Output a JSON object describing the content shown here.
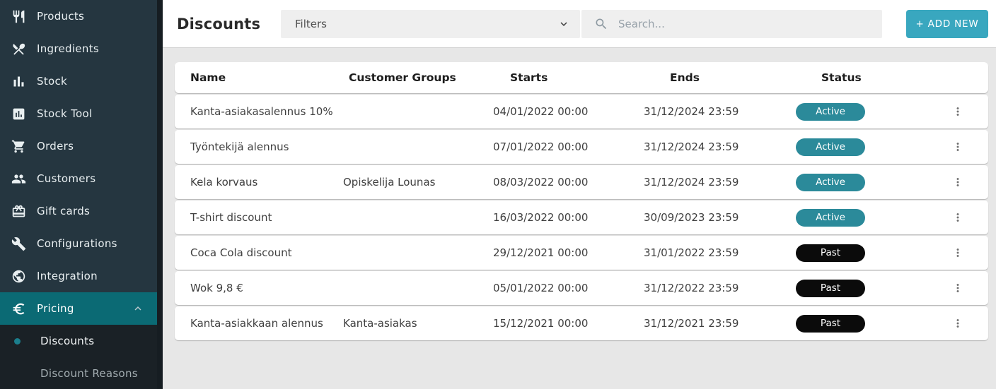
{
  "colors": {
    "accent": "#39a7bf",
    "accent_dot": "#1b7e8c",
    "badge_active": "#2b8a9a",
    "badge_past": "#0b0b0b",
    "pricing_highlight": "#0b6a74",
    "sidebar_bg": "#253640",
    "sidebar_strip": "#161d22",
    "subnav_bg": "#1a2126"
  },
  "sidebar": {
    "items": [
      {
        "label": "Products",
        "icon": "fork-knife-icon"
      },
      {
        "label": "Ingredients",
        "icon": "fork-spoon-icon"
      },
      {
        "label": "Stock",
        "icon": "bar-chart-icon"
      },
      {
        "label": "Stock Tool",
        "icon": "chart-box-icon"
      },
      {
        "label": "Orders",
        "icon": "shopping-cart-icon"
      },
      {
        "label": "Customers",
        "icon": "people-icon"
      },
      {
        "label": "Gift cards",
        "icon": "gift-icon"
      },
      {
        "label": "Configurations",
        "icon": "wrench-icon"
      },
      {
        "label": "Integration",
        "icon": "globe-lock-icon"
      },
      {
        "label": "Pricing",
        "icon": "euro-icon",
        "active": true,
        "expanded": true
      }
    ],
    "submenu": [
      {
        "label": "Discounts",
        "active": true
      },
      {
        "label": "Discount Reasons",
        "active": false
      }
    ]
  },
  "header": {
    "title": "Discounts",
    "filters_label": "Filters",
    "search_placeholder": "Search...",
    "add_new_label": "+ ADD NEW"
  },
  "table": {
    "columns": [
      "Name",
      "Customer Groups",
      "Starts",
      "Ends",
      "Status"
    ],
    "rows": [
      {
        "name": "Kanta-asiakasalennus 10%",
        "groups": "",
        "starts": "04/01/2022 00:00",
        "ends": "31/12/2024 23:59",
        "status": "Active"
      },
      {
        "name": "Työntekijä alennus",
        "groups": "",
        "starts": "07/01/2022 00:00",
        "ends": "31/12/2024 23:59",
        "status": "Active"
      },
      {
        "name": "Kela korvaus",
        "groups": "Opiskelija Lounas",
        "starts": "08/03/2022 00:00",
        "ends": "31/12/2024 23:59",
        "status": "Active"
      },
      {
        "name": "T-shirt discount",
        "groups": "",
        "starts": "16/03/2022 00:00",
        "ends": "30/09/2023 23:59",
        "status": "Active"
      },
      {
        "name": "Coca Cola discount",
        "groups": "",
        "starts": "29/12/2021 00:00",
        "ends": "31/01/2022 23:59",
        "status": "Past"
      },
      {
        "name": "Wok 9,8 €",
        "groups": "",
        "starts": "05/01/2022 00:00",
        "ends": "31/12/2022 23:59",
        "status": "Past"
      },
      {
        "name": "Kanta-asiakkaan alennus",
        "groups": "Kanta-asiakas",
        "starts": "15/12/2021 00:00",
        "ends": "31/12/2021 23:59",
        "status": "Past"
      }
    ]
  }
}
